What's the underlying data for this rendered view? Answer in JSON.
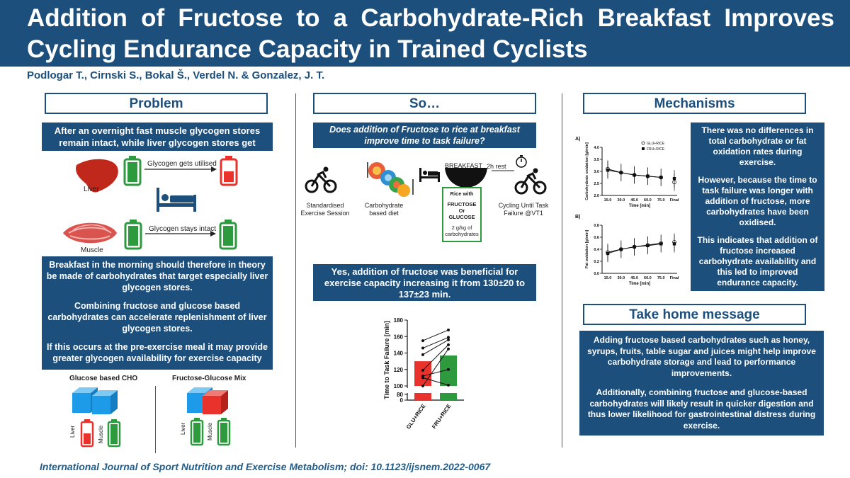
{
  "title": "Addition of Fructose to a Carbohydrate-Rich Breakfast Improves Cycling Endurance Capacity in Trained Cyclists",
  "authors": "Podlogar T., Cirnski S., Bokal Š., Verdel N. & Gonzalez, J. T.",
  "problem": {
    "heading": "Problem",
    "box1": "After an overnight fast muscle glycogen stores remain intact, while liver glycogen stores get reduced.",
    "liver_label": "Liver",
    "liver_arrow": "Glycogen gets utilised",
    "muscle_label": "Muscle",
    "muscle_arrow": "Glycogen stays intact",
    "box2_p1": "Breakfast in the morning should therefore in theory be made of carbohydrates that target especially liver glycogen stores.",
    "box2_p2": "Combining fructose and glucose based carbohydrates can accelerate replenishment of liver glycogen stores.",
    "box2_p3": "If this occurs at the pre-exercise meal it may provide greater glycogen availability for exercise capacity",
    "glucose_label": "Glucose based CHO",
    "mix_label": "Fructose-Glucose Mix",
    "liver_small": "Liver",
    "muscle_small": "Muscle"
  },
  "so": {
    "heading": "So…",
    "question": "Does addition of Fructose to rice at breakfast improve time to task failure?",
    "step1": "Standardised Exercise Session",
    "step2": "Carbohydrate based diet",
    "breakfast_label": "BREAKFAST",
    "rice_box_title": "Rice with",
    "rice_box_fructose": "FRUCTOSE",
    "rice_box_or": "Or",
    "rice_box_glucose": "GLUCOSE",
    "rice_box_dose": "2 g/kg of carbohydrates",
    "rest_label": "2h rest",
    "step4": "Cycling Until Task Failure @VT1",
    "answer": "Yes, addition of fructose was beneficial for exercise capacity increasing it from 130±20 to 137±23 min."
  },
  "ttf_chart": {
    "ylabel": "Time to Task Failure [min]",
    "categories": [
      "GLU+RICE",
      "FRU+RICE"
    ],
    "values": [
      130,
      137
    ],
    "bar_colors": [
      "#e8322b",
      "#2e9a3e"
    ],
    "yticks": [
      "180",
      "160",
      "140",
      "120",
      "100",
      "80",
      "0"
    ],
    "pairs": [
      [
        155,
        168
      ],
      [
        146,
        159
      ],
      [
        138,
        156
      ],
      [
        119,
        150
      ],
      [
        100,
        145
      ],
      [
        112,
        120
      ],
      [
        110,
        101
      ]
    ]
  },
  "mechanisms": {
    "heading": "Mechanisms",
    "text_p1": "There was no differences in total carbohydrate or fat oxidation rates during exercise.",
    "text_p2": "However, because the time to task failure was longer with addition of fructose, more carbohydrates have been oxidised.",
    "text_p3": "This indicates that addition of fructose increased carbohydrate availability and this led to improved endurance capacity.",
    "chartA_tag": "A)",
    "chartB_tag": "B)",
    "chartA_ylabel": "Carbohydrate oxidation [g/min]",
    "chartB_ylabel": "Fat oxidation [g/min]",
    "legend_glu": "GLU+RICE",
    "legend_fru": "FRU+RICE",
    "xticks": [
      "15.0",
      "30.0",
      "45.0",
      "60.0",
      "75.0",
      "Final"
    ],
    "xlabel": "Time [min]",
    "chartA_yticks": [
      "4.0",
      "3.5",
      "3.0",
      "2.5",
      "2.0"
    ],
    "chartB_yticks": [
      "0.8",
      "0.6",
      "0.4",
      "0.2",
      "0.0"
    ]
  },
  "chart_data": [
    {
      "type": "line",
      "x": [
        "15.0",
        "30.0",
        "45.0",
        "60.0",
        "75.0",
        "Final"
      ],
      "ylabel": "Carbohydrate oxidation [g/min]",
      "xlabel": "Time [min]",
      "ylim": [
        2.0,
        4.0
      ],
      "series": [
        {
          "name": "GLU+RICE",
          "values": [
            3.1,
            2.95,
            2.85,
            2.8,
            2.75,
            2.55
          ]
        },
        {
          "name": "FRU+RICE",
          "values": [
            3.05,
            2.95,
            2.85,
            2.8,
            2.75,
            2.7
          ]
        }
      ]
    },
    {
      "type": "line",
      "x": [
        "15.0",
        "30.0",
        "45.0",
        "60.0",
        "75.0",
        "Final"
      ],
      "ylabel": "Fat oxidation [g/min]",
      "xlabel": "Time [min]",
      "ylim": [
        0.0,
        0.8
      ],
      "series": [
        {
          "name": "GLU+RICE",
          "values": [
            0.35,
            0.4,
            0.44,
            0.47,
            0.5,
            0.52
          ]
        },
        {
          "name": "FRU+RICE",
          "values": [
            0.33,
            0.4,
            0.44,
            0.46,
            0.49,
            0.49
          ]
        }
      ]
    }
  ],
  "takehome": {
    "heading": "Take home message",
    "p1": "Adding fructose based carbohydrates such as honey, syrups, fruits, table sugar and juices might help improve carbohydrate storage and lead to performance improvements.",
    "p2": "Additionally, combining fructose and glucose-based carbohydrates will likely result in quicker digestion and thus lower likelihood for gastrointestinal distress during exercise."
  },
  "journal": "International Journal of Sport Nutrition and Exercise Metabolism; doi: 10.1123/ijsnem.2022-0067"
}
